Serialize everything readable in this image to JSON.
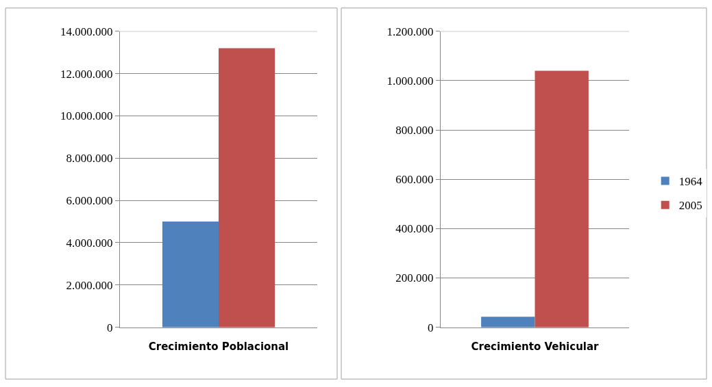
{
  "chart_data": [
    {
      "type": "bar",
      "categories": [
        "Crecimiento Poblacional"
      ],
      "series": [
        {
          "name": "1964",
          "color": "#4f81bd",
          "values": [
            5000000
          ]
        },
        {
          "name": "2005",
          "color": "#c0504d",
          "values": [
            13200000
          ]
        }
      ],
      "ylim": [
        0,
        14000000
      ],
      "yticks": [
        0,
        {
          "value": 2000000,
          "label": "2.000.000"
        },
        {
          "value": 4000000,
          "label": "4.000.000"
        },
        {
          "value": 6000000,
          "label": "6.000.000"
        },
        {
          "value": 8000000,
          "label": "8.000.000"
        },
        {
          "value": 10000000,
          "label": "10.000.000"
        },
        {
          "value": 12000000,
          "label": "12.000.000"
        },
        {
          "value": 14000000,
          "label": "14.000.000"
        }
      ],
      "grid": "y",
      "legend": "right"
    },
    {
      "type": "bar",
      "categories": [
        "Crecimiento Vehicular"
      ],
      "series": [
        {
          "name": "1964",
          "color": "#4f81bd",
          "values": [
            43000
          ]
        },
        {
          "name": "2005",
          "color": "#c0504d",
          "values": [
            1040000
          ]
        }
      ],
      "ylim": [
        0,
        1200000
      ],
      "yticks": [
        0,
        {
          "value": 200000,
          "label": "200.000"
        },
        {
          "value": 400000,
          "label": "400.000"
        },
        {
          "value": 600000,
          "label": "600.000"
        },
        {
          "value": 800000,
          "label": "800.000"
        },
        {
          "value": 1000000,
          "label": "1.000.000"
        },
        {
          "value": 1200000,
          "label": "1.200.000"
        }
      ],
      "grid": "y",
      "legend": "right"
    }
  ]
}
